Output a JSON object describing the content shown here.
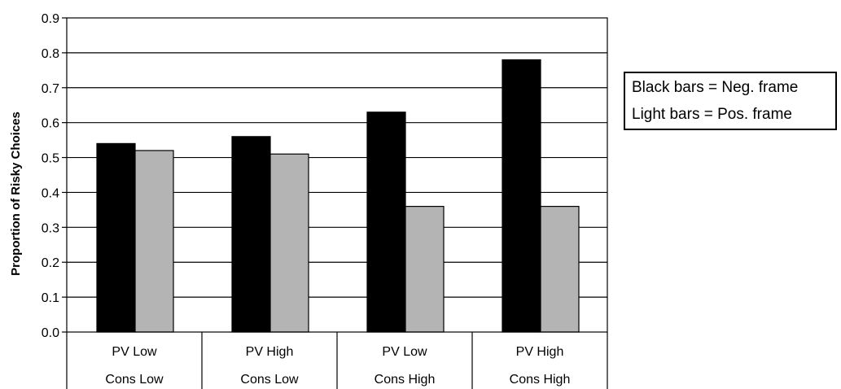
{
  "chart_data": {
    "type": "bar",
    "ylabel": "Proportion of Risky Choices",
    "ylim": [
      0,
      0.9
    ],
    "yticks": [
      "0.0",
      "0.1",
      "0.2",
      "0.3",
      "0.4",
      "0.5",
      "0.6",
      "0.7",
      "0.8",
      "0.9"
    ],
    "categories": [
      {
        "line1": "PV Low",
        "line2": "Cons Low"
      },
      {
        "line1": "PV High",
        "line2": "Cons Low"
      },
      {
        "line1": "PV Low",
        "line2": "Cons High"
      },
      {
        "line1": "PV High",
        "line2": "Cons High"
      }
    ],
    "series": [
      {
        "values": [
          0.54,
          0.56,
          0.63,
          0.78
        ],
        "color": "#000000"
      },
      {
        "values": [
          0.52,
          0.51,
          0.36,
          0.36
        ],
        "color": "#b4b4b4"
      }
    ],
    "grid": true,
    "legend": {
      "placement": "right",
      "lines": [
        "Black bars = Neg. frame",
        "Light bars = Pos. frame"
      ]
    }
  }
}
